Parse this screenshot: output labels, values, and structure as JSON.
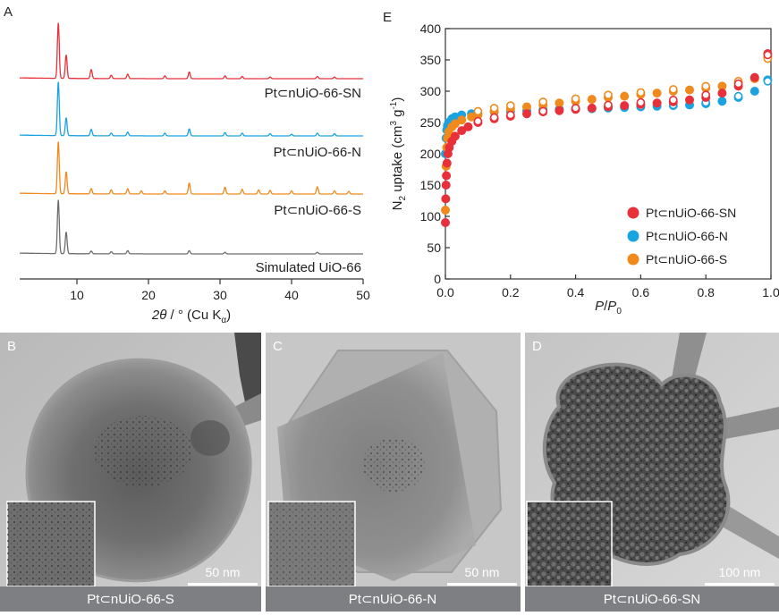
{
  "panel_a": {
    "letter": "A",
    "xlabel_html": "2θ / ° (Cu Kα)",
    "xlabel_parts": {
      "theta": "2θ",
      "rest": " / ° (Cu K",
      "sub": "α",
      "close": ")"
    },
    "traces": [
      {
        "label": "Pt⊂nUiO-66-SN",
        "color": "#e8303a"
      },
      {
        "label": "Pt⊂nUiO-66-N",
        "color": "#1aa3e0"
      },
      {
        "label": "Pt⊂nUiO-66-S",
        "color": "#f08a1c"
      },
      {
        "label": "Simulated UiO-66",
        "color": "#6e6e6e"
      }
    ]
  },
  "panel_e": {
    "letter": "E",
    "ylabel_parts": {
      "a": "N",
      "sub": "2",
      "b": " uptake (cm",
      "sup1": "3",
      "c": " g",
      "sup2": "-1",
      "d": ")"
    },
    "xlabel_parts": {
      "a": "P",
      "b": "/",
      "c": "P",
      "sub": "0"
    },
    "legend": [
      {
        "label": "Pt⊂nUiO-66-SN",
        "color": "#e8303a"
      },
      {
        "label": "Pt⊂nUiO-66-N",
        "color": "#1aa3e0"
      },
      {
        "label": "Pt⊂nUiO-66-S",
        "color": "#f08a1c"
      }
    ]
  },
  "chart_data": [
    {
      "type": "line",
      "panel": "A",
      "xlabel": "2θ / ° (Cu Kα)",
      "ylabel": "",
      "xlim": [
        2,
        50
      ],
      "xticks": [
        10,
        20,
        30,
        40,
        50
      ],
      "series": [
        {
          "name": "Pt⊂nUiO-66-SN",
          "peaks": [
            [
              7.4,
              1.0
            ],
            [
              8.5,
              0.42
            ],
            [
              12.0,
              0.16
            ],
            [
              14.8,
              0.06
            ],
            [
              17.1,
              0.08
            ],
            [
              22.3,
              0.05
            ],
            [
              25.7,
              0.12
            ],
            [
              30.7,
              0.05
            ],
            [
              33.1,
              0.04
            ],
            [
              37.0,
              0.03
            ],
            [
              43.6,
              0.04
            ],
            [
              46.0,
              0.03
            ]
          ]
        },
        {
          "name": "Pt⊂nUiO-66-N",
          "peaks": [
            [
              7.4,
              1.0
            ],
            [
              8.5,
              0.33
            ],
            [
              12.0,
              0.12
            ],
            [
              14.8,
              0.05
            ],
            [
              17.1,
              0.07
            ],
            [
              22.3,
              0.05
            ],
            [
              25.7,
              0.13
            ],
            [
              30.7,
              0.06
            ],
            [
              33.1,
              0.05
            ],
            [
              37.0,
              0.04
            ],
            [
              40.0,
              0.03
            ],
            [
              43.6,
              0.05
            ],
            [
              46.0,
              0.04
            ]
          ]
        },
        {
          "name": "Pt⊂nUiO-66-S",
          "peaks": [
            [
              7.4,
              1.0
            ],
            [
              8.5,
              0.42
            ],
            [
              12.0,
              0.1
            ],
            [
              14.8,
              0.08
            ],
            [
              17.1,
              0.1
            ],
            [
              19.0,
              0.06
            ],
            [
              22.3,
              0.06
            ],
            [
              25.7,
              0.21
            ],
            [
              30.7,
              0.13
            ],
            [
              33.1,
              0.09
            ],
            [
              35.4,
              0.08
            ],
            [
              37.0,
              0.07
            ],
            [
              40.0,
              0.06
            ],
            [
              43.6,
              0.14
            ],
            [
              46.0,
              0.06
            ],
            [
              48.0,
              0.05
            ]
          ]
        },
        {
          "name": "Simulated UiO-66",
          "peaks": [
            [
              7.4,
              1.0
            ],
            [
              8.5,
              0.4
            ],
            [
              12.0,
              0.05
            ],
            [
              14.8,
              0.04
            ],
            [
              17.1,
              0.06
            ],
            [
              25.7,
              0.06
            ],
            [
              30.7,
              0.03
            ],
            [
              43.6,
              0.03
            ]
          ]
        }
      ]
    },
    {
      "type": "scatter",
      "panel": "E",
      "xlabel": "P/P0",
      "ylabel": "N2 uptake (cm3 g-1)",
      "xlim": [
        0.0,
        1.0
      ],
      "ylim": [
        0,
        400
      ],
      "xticks": [
        0.0,
        0.2,
        0.4,
        0.6,
        0.8,
        1.0
      ],
      "yticks": [
        0,
        50,
        100,
        150,
        200,
        250,
        300,
        350,
        400
      ],
      "legend_position": "bottom-right",
      "series": [
        {
          "name": "Pt⊂nUiO-66-SN",
          "adsorption": [
            [
              0.0,
              90
            ],
            [
              0.001,
              128
            ],
            [
              0.002,
              150
            ],
            [
              0.003,
              165
            ],
            [
              0.005,
              185
            ],
            [
              0.008,
              200
            ],
            [
              0.012,
              210
            ],
            [
              0.02,
              220
            ],
            [
              0.03,
              228
            ],
            [
              0.05,
              237
            ],
            [
              0.07,
              243
            ],
            [
              0.1,
              250
            ],
            [
              0.15,
              256
            ],
            [
              0.2,
              260
            ],
            [
              0.25,
              264
            ],
            [
              0.3,
              267
            ],
            [
              0.35,
              269
            ],
            [
              0.4,
              271
            ],
            [
              0.45,
              273
            ],
            [
              0.5,
              275
            ],
            [
              0.55,
              277
            ],
            [
              0.6,
              279
            ],
            [
              0.65,
              281
            ],
            [
              0.7,
              283
            ],
            [
              0.75,
              286
            ],
            [
              0.8,
              290
            ],
            [
              0.85,
              297
            ],
            [
              0.9,
              308
            ],
            [
              0.95,
              322
            ],
            [
              0.99,
              360
            ]
          ],
          "desorption": [
            [
              0.99,
              358
            ],
            [
              0.9,
              312
            ],
            [
              0.8,
              294
            ],
            [
              0.7,
              286
            ],
            [
              0.6,
              282
            ],
            [
              0.5,
              278
            ],
            [
              0.4,
              273
            ],
            [
              0.3,
              268
            ],
            [
              0.2,
              262
            ],
            [
              0.15,
              258
            ],
            [
              0.1,
              252
            ]
          ]
        },
        {
          "name": "Pt⊂nUiO-66-N",
          "adsorption": [
            [
              0.0,
              200
            ],
            [
              0.002,
              225
            ],
            [
              0.004,
              238
            ],
            [
              0.006,
              245
            ],
            [
              0.01,
              250
            ],
            [
              0.02,
              256
            ],
            [
              0.03,
              259
            ],
            [
              0.05,
              262
            ],
            [
              0.08,
              264
            ],
            [
              0.1,
              265
            ],
            [
              0.15,
              267
            ],
            [
              0.2,
              268
            ],
            [
              0.25,
              269
            ],
            [
              0.3,
              270
            ],
            [
              0.35,
              271
            ],
            [
              0.4,
              272
            ],
            [
              0.45,
              272
            ],
            [
              0.5,
              273
            ],
            [
              0.55,
              274
            ],
            [
              0.6,
              275
            ],
            [
              0.65,
              276
            ],
            [
              0.7,
              277
            ],
            [
              0.75,
              278
            ],
            [
              0.8,
              280
            ],
            [
              0.85,
              284
            ],
            [
              0.9,
              290
            ],
            [
              0.95,
              300
            ],
            [
              0.99,
              318
            ]
          ],
          "desorption": [
            [
              0.99,
              316
            ],
            [
              0.9,
              292
            ],
            [
              0.8,
              282
            ],
            [
              0.7,
              278
            ],
            [
              0.6,
              276
            ],
            [
              0.5,
              274
            ],
            [
              0.4,
              272
            ],
            [
              0.3,
              271
            ]
          ]
        },
        {
          "name": "Pt⊂nUiO-66-S",
          "adsorption": [
            [
              0.0,
              110
            ],
            [
              0.002,
              180
            ],
            [
              0.004,
              210
            ],
            [
              0.006,
              225
            ],
            [
              0.01,
              235
            ],
            [
              0.02,
              243
            ],
            [
              0.03,
              248
            ],
            [
              0.05,
              254
            ],
            [
              0.08,
              259
            ],
            [
              0.1,
              262
            ],
            [
              0.15,
              268
            ],
            [
              0.2,
              272
            ],
            [
              0.25,
              275
            ],
            [
              0.3,
              278
            ],
            [
              0.35,
              281
            ],
            [
              0.4,
              284
            ],
            [
              0.45,
              287
            ],
            [
              0.5,
              290
            ],
            [
              0.55,
              292
            ],
            [
              0.6,
              295
            ],
            [
              0.65,
              297
            ],
            [
              0.7,
              300
            ],
            [
              0.75,
              302
            ],
            [
              0.8,
              305
            ],
            [
              0.85,
              308
            ],
            [
              0.9,
              313
            ],
            [
              0.95,
              320
            ],
            [
              0.99,
              355
            ]
          ],
          "desorption": [
            [
              0.99,
              352
            ],
            [
              0.9,
              316
            ],
            [
              0.8,
              308
            ],
            [
              0.7,
              303
            ],
            [
              0.6,
              298
            ],
            [
              0.5,
              294
            ],
            [
              0.4,
              288
            ],
            [
              0.3,
              283
            ],
            [
              0.2,
              277
            ],
            [
              0.15,
              273
            ],
            [
              0.1,
              268
            ]
          ]
        }
      ]
    }
  ],
  "tem_panels": [
    {
      "letter": "B",
      "scale_label": "50 nm",
      "caption": "Pt⊂nUiO-66-S"
    },
    {
      "letter": "C",
      "scale_label": "50 nm",
      "caption": "Pt⊂nUiO-66-N"
    },
    {
      "letter": "D",
      "scale_label": "100 nm",
      "caption": "Pt⊂nUiO-66-SN"
    }
  ],
  "colors": {
    "red": "#e8303a",
    "blue": "#1aa3e0",
    "orange": "#f08a1c",
    "gray": "#6e6e6e",
    "caption_bar": "#7d7f82"
  }
}
